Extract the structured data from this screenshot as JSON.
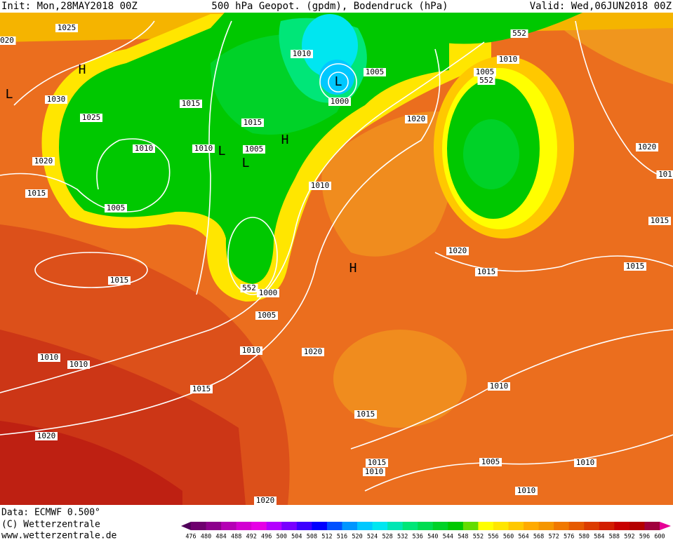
{
  "header": {
    "init": "Init: Mon,28MAY2018 00Z",
    "title": "500 hPa Geopot. (gpdm), Bodendruck (hPa)",
    "valid": "Valid: Wed,06JUN2018 00Z"
  },
  "map": {
    "labels": [
      "1025",
      "H",
      "L",
      "1030",
      "1025",
      "1020",
      "1015",
      "1010",
      "1005",
      "1015",
      "1010",
      "L",
      "L",
      "1005",
      "1015",
      "H",
      "1010",
      "L",
      "1000",
      "1005",
      "552",
      "1010",
      "1005",
      "552",
      "1020",
      "1010",
      "1020",
      "101",
      "1015",
      "1015",
      "1020",
      "1015",
      "H",
      "552",
      "1000",
      "1005",
      "1010",
      "1020",
      "1015",
      "1010",
      "1010",
      "1015",
      "1020",
      "1010",
      "1015",
      "1015",
      "1010",
      "1005",
      "1010",
      "1010",
      "1020",
      "020"
    ]
  },
  "footer": {
    "data": "Data: ECMWF   0.500°",
    "copyright": "(C) Wetterzentrale",
    "url": "www.wetterzentrale.de"
  },
  "legend": {
    "ticks": [
      476,
      480,
      484,
      488,
      492,
      496,
      500,
      504,
      508,
      512,
      516,
      520,
      524,
      528,
      532,
      536,
      540,
      544,
      548,
      552,
      556,
      560,
      564,
      568,
      572,
      576,
      580,
      584,
      588,
      592,
      596,
      600
    ],
    "colors": [
      "#50005a",
      "#6e006e",
      "#8c008c",
      "#b400b4",
      "#d200d2",
      "#e600e6",
      "#b400ff",
      "#7800ff",
      "#3c00ff",
      "#0000ff",
      "#0050ff",
      "#0096ff",
      "#00c8ff",
      "#00e6f0",
      "#00e6b4",
      "#00e678",
      "#00dc50",
      "#00d228",
      "#00c800",
      "#64dc00",
      "#ffff00",
      "#ffe600",
      "#ffc800",
      "#ffaa00",
      "#f59600",
      "#f07800",
      "#e65a00",
      "#dc3c00",
      "#d21e00",
      "#c80000",
      "#b40000",
      "#a0003c",
      "#e60096"
    ]
  }
}
